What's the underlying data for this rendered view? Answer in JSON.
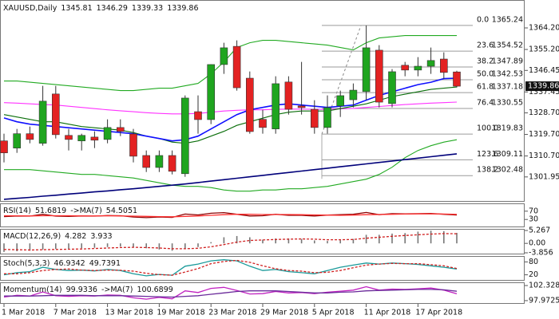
{
  "chart_data": [
    {
      "type": "candlestick",
      "title": "XAUUSD,Daily",
      "categories": [
        "1 Mar 2018",
        null,
        null,
        null,
        "7 Mar 2018",
        null,
        null,
        null,
        "13 Mar 2018",
        null,
        null,
        null,
        "19 Mar 2018",
        null,
        null,
        null,
        "23 Mar 2018",
        null,
        null,
        null,
        "29 Mar 2018",
        null,
        null,
        null,
        "5 Apr 2018",
        null,
        null,
        null,
        "11 Apr 2018",
        null,
        null,
        null,
        "17 Apr 2018",
        null,
        null,
        null
      ],
      "open": [
        1317,
        1314,
        1320,
        1316,
        1336.6,
        1319.3,
        1317,
        1318.6,
        1317.6,
        1322.6,
        1319.9,
        1310.9,
        1305.9,
        1310.9,
        1303.3,
        1329.2,
        1325.9,
        1348.9,
        1356.5,
        1343.2,
        1326,
        1322,
        1341.6,
        1331.6,
        1330.2,
        1322.6,
        1331.6,
        1334.2,
        1337.6,
        1354.9,
        1332.6,
        1348.6,
        1346.6,
        1348.2,
        1351.2,
        1345.81
      ],
      "high": [
        1320,
        1322,
        1323,
        1340,
        1340,
        1322,
        1320,
        1321,
        1326,
        1326,
        1322,
        1313,
        1313,
        1313,
        1336,
        1336,
        1349,
        1358,
        1359,
        1346,
        1330,
        1344,
        1344,
        1350,
        1334,
        1336,
        1338,
        1341,
        1365.24,
        1357,
        1347,
        1350,
        1352,
        1356,
        1354,
        1346.29
      ],
      "low": [
        1308,
        1312,
        1316,
        1315,
        1318,
        1313,
        1313,
        1314,
        1316,
        1319,
        1308,
        1304,
        1304,
        1303,
        1302,
        1320,
        1324,
        1345,
        1338,
        1320,
        1320,
        1320,
        1328,
        1328,
        1320,
        1320,
        1327,
        1331,
        1334,
        1331,
        1331,
        1344,
        1344,
        1345,
        1343,
        1339.33
      ],
      "close": [
        1312,
        1320,
        1317.6,
        1333.6,
        1319.6,
        1317.6,
        1319.3,
        1317.3,
        1322.6,
        1321,
        1310.6,
        1305.9,
        1310.9,
        1304.3,
        1334.9,
        1325.9,
        1348.9,
        1355.9,
        1339.2,
        1320.9,
        1322.6,
        1340.9,
        1330.2,
        1330.9,
        1322.6,
        1330.9,
        1335.9,
        1338.2,
        1355.9,
        1333.2,
        1345.9,
        1346.6,
        1348.2,
        1350.6,
        1345.6,
        1339.86
      ],
      "up_color": "#1fa51f",
      "down_color": "#e32222",
      "ylim": [
        1291.9,
        1374.2
      ],
      "yticks": [
        {
          "value": 1364.2,
          "label": "1364.20"
        },
        {
          "value": 1355.2,
          "label": "1355.20"
        },
        1346.45,
        1337.45,
        {
          "value": 1328.7,
          "label": "1328.70"
        },
        {
          "value": 1319.7,
          "label": "1319.70"
        },
        {
          "value": 1310.7,
          "label": "1310.70"
        },
        1301.95
      ],
      "overlays": [
        {
          "color": "#22aa22",
          "values": [
            1342,
            1342,
            1341.5,
            1341,
            1340.5,
            1340,
            1339.5,
            1339,
            1338.5,
            1338,
            1338,
            1338.5,
            1339,
            1339,
            1340,
            1341,
            1345,
            1350,
            1356,
            1358,
            1359,
            1359,
            1358.5,
            1358,
            1357.5,
            1357,
            1356,
            1355,
            1358,
            1360,
            1360.5,
            1361,
            1361,
            1361,
            1361,
            1361
          ]
        },
        {
          "color": "#22aa22",
          "values": [
            1305,
            1305,
            1305,
            1304.5,
            1304,
            1303.5,
            1303,
            1303,
            1302.5,
            1302,
            1301.5,
            1300.5,
            1299.5,
            1298.5,
            1298,
            1298,
            1297.5,
            1296.5,
            1296,
            1296,
            1296.5,
            1296.5,
            1297,
            1297,
            1297.5,
            1298,
            1299,
            1300,
            1301,
            1303,
            1306,
            1310,
            1313,
            1315,
            1316.5,
            1317.5
          ]
        },
        {
          "color": "#ff33ff",
          "values": [
            1333,
            1332.8,
            1332.5,
            1332.2,
            1332,
            1331.5,
            1331,
            1330.5,
            1330,
            1329.6,
            1329.2,
            1328.8,
            1328.5,
            1328.3,
            1328.3,
            1328.5,
            1329,
            1329.5,
            1329.8,
            1330,
            1330,
            1330.2,
            1330.3,
            1330.3,
            1330.2,
            1330.2,
            1330.4,
            1330.6,
            1331,
            1331.4,
            1331.8,
            1332.2,
            1332.5,
            1332.8,
            1333,
            1333.2
          ]
        },
        {
          "color": "#0a6e0a",
          "values": [
            1328,
            1327,
            1326,
            1325,
            1325,
            1324,
            1323,
            1322.5,
            1322,
            1321.5,
            1320.5,
            1319,
            1318,
            1316.5,
            1316,
            1317,
            1319,
            1321,
            1323.5,
            1325,
            1326.5,
            1328,
            1329,
            1329.5,
            1329.5,
            1329.5,
            1330.5,
            1331.5,
            1332.5,
            1334,
            1335.5,
            1336.5,
            1337.5,
            1338.5,
            1339,
            1339.5
          ]
        },
        {
          "color": "#1010ff",
          "values": [
            1326.6,
            1325,
            1324,
            1323.5,
            1323,
            1322.5,
            1322,
            1321.5,
            1321,
            1320.5,
            1320,
            1319,
            1318,
            1317,
            1317.5,
            1319,
            1322,
            1325,
            1328,
            1330,
            1331,
            1332,
            1332.5,
            1332,
            1331.5,
            1331,
            1331.5,
            1332,
            1334,
            1336,
            1337.5,
            1339,
            1340.5,
            1341.5,
            1343,
            1343.2
          ]
        },
        {
          "color": "#00007a",
          "values": [
            1292.6,
            1293,
            1293.4,
            1293.9,
            1294.3,
            1294.8,
            1295.2,
            1295.7,
            1296.1,
            1296.6,
            1297,
            1297.5,
            1298,
            1298.5,
            1299,
            1299.6,
            1300.2,
            1300.8,
            1301.4,
            1302,
            1302.6,
            1303.2,
            1303.8,
            1304.4,
            1305,
            1305.6,
            1306.2,
            1306.8,
            1307.4,
            1308,
            1308.6,
            1309.2,
            1309.8,
            1310.4,
            1311,
            1311.6
          ]
        }
      ],
      "fib": [
        {
          "level": "0.0",
          "value": 1365.24
        },
        {
          "level": "23.6",
          "value": 1354.52
        },
        {
          "level": "38.2",
          "value": 1347.89
        },
        {
          "level": "50.0",
          "value": 1342.53
        },
        {
          "level": "61.8",
          "value": 1337.18
        },
        {
          "level": "76.4",
          "value": 1330.55
        },
        {
          "level": "100.0",
          "value": 1319.83
        },
        {
          "level": "123.6",
          "value": 1309.11
        },
        {
          "level": "138.2",
          "value": 1302.48
        }
      ]
    },
    {
      "type": "line",
      "ylim": [
        0,
        100
      ],
      "yticks": [
        70,
        30
      ],
      "series": [
        {
          "name": "RSI(14)",
          "color": "#8b0000",
          "values": [
            44,
            47,
            46,
            55,
            46,
            45,
            47,
            46,
            49,
            48,
            42,
            39,
            42,
            40,
            56,
            52,
            60,
            63,
            55,
            47,
            48,
            55,
            50,
            50,
            47,
            51,
            53,
            55,
            64,
            53,
            58,
            57,
            58,
            59,
            55,
            51.6819
          ]
        },
        {
          "name": "->MA(7)",
          "color": "#ff3030",
          "values": [
            48,
            47.5,
            47,
            48,
            48,
            48,
            47,
            47,
            48,
            47,
            46,
            45,
            44,
            43,
            45,
            47,
            50,
            53,
            55,
            55,
            54,
            54,
            54,
            53,
            52,
            51,
            50,
            51,
            53,
            54,
            55,
            56,
            57,
            57,
            56,
            54.5051
          ]
        }
      ]
    },
    {
      "type": "line",
      "ylim": [
        -3.856,
        5.267
      ],
      "yticks": [
        5.267,
        {
          "value": 0,
          "label": "0.00"
        },
        -3.856
      ],
      "series": [
        {
          "name": "MACD(12,26,9)",
          "type": "bar",
          "color": "#777777",
          "values": [
            -3.5,
            -3.2,
            -3,
            -2.5,
            -2.3,
            -2.2,
            -2,
            -1.8,
            -1.5,
            -1.3,
            -1.5,
            -2,
            -2.5,
            -3,
            -2.2,
            -1.5,
            0.5,
            2.5,
            3,
            2.5,
            1.5,
            2,
            2,
            1.8,
            1.2,
            1,
            1.3,
            1.8,
            3.5,
            3.5,
            4,
            4.2,
            4.8,
            5.2,
            5,
            4.282
          ]
        },
        {
          "type": "line",
          "dash": true,
          "color": "#d02020",
          "values": [
            -2.5,
            -2.6,
            -2.7,
            -2.6,
            -2.5,
            -2.4,
            -2.3,
            -2.1,
            -1.9,
            -1.7,
            -1.6,
            -1.7,
            -1.9,
            -2.2,
            -2.2,
            -2,
            -1.4,
            -0.5,
            0.5,
            1.2,
            1.4,
            1.6,
            1.7,
            1.8,
            1.7,
            1.5,
            1.5,
            1.6,
            2.1,
            2.5,
            2.9,
            3.2,
            3.5,
            3.8,
            4,
            3.933
          ]
        }
      ]
    },
    {
      "type": "line",
      "ylim": [
        0,
        100
      ],
      "yticks": [
        80,
        20
      ],
      "series": [
        {
          "name": "Stoch(5,3,3)",
          "color": "#1a9a9a",
          "values": [
            20,
            30,
            35,
            55,
            45,
            40,
            42,
            38,
            45,
            40,
            25,
            15,
            22,
            18,
            60,
            70,
            85,
            90,
            85,
            60,
            40,
            45,
            35,
            30,
            25,
            40,
            55,
            65,
            75,
            70,
            75,
            72,
            68,
            62,
            55,
            46.9342
          ]
        },
        {
          "dash": true,
          "color": "#d02020",
          "values": [
            25,
            25,
            30,
            40,
            45,
            47,
            42,
            40,
            42,
            41,
            37,
            27,
            21,
            18,
            33,
            49,
            72,
            82,
            87,
            78,
            62,
            48,
            40,
            37,
            30,
            32,
            40,
            53,
            65,
            70,
            73,
            72,
            72,
            67,
            62,
            49.7391
          ]
        }
      ]
    },
    {
      "type": "line",
      "ylim": [
        97.5,
        102.8
      ],
      "yticks": [
        102.3288,
        97.9725
      ],
      "series": [
        {
          "name": "Momentum(14)",
          "color": "#c020c0",
          "values": [
            99,
            99.5,
            99.3,
            100.5,
            99.4,
            99.2,
            99.4,
            99.3,
            99.6,
            99.5,
            98.8,
            98.4,
            98.9,
            98.5,
            100.8,
            100.3,
            101.5,
            101.8,
            100.9,
            99.9,
            100,
            100.6,
            100.2,
            100.3,
            100,
            100.4,
            100.7,
            101,
            102,
            101,
            101.3,
            101.2,
            101.4,
            101.6,
            101,
            99.9336
          ]
        },
        {
          "name": "->MA(7)",
          "color": "#6a2a9a",
          "values": [
            99.3,
            99.3,
            99.3,
            99.4,
            99.5,
            99.5,
            99.5,
            99.4,
            99.4,
            99.4,
            99.3,
            99.2,
            99.1,
            99,
            99.2,
            99.4,
            99.8,
            100.2,
            100.6,
            100.8,
            100.8,
            100.8,
            100.6,
            100.4,
            100.2,
            100.2,
            100.4,
            100.5,
            100.8,
            100.9,
            101,
            101.1,
            101.2,
            101.2,
            101.1,
            100.6899
          ]
        }
      ]
    }
  ]
}
